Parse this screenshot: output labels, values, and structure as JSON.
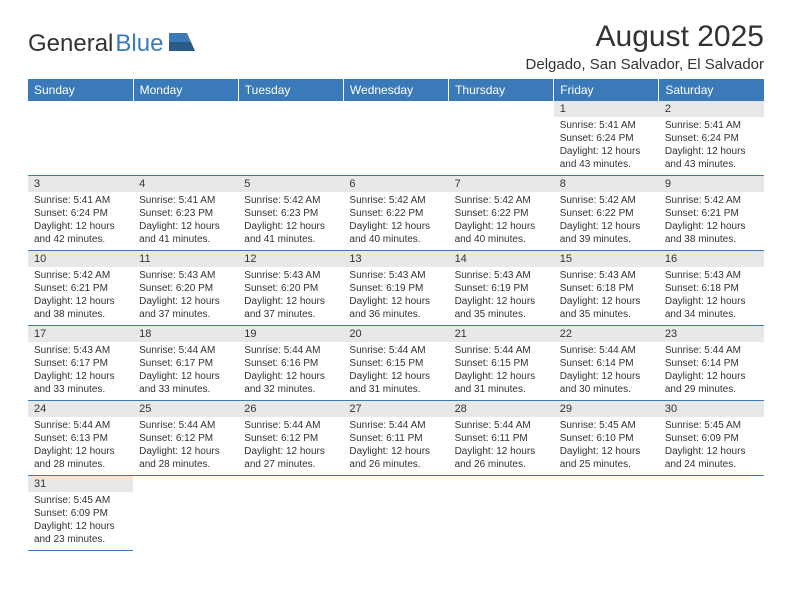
{
  "logo": {
    "general": "General",
    "blue": "Blue"
  },
  "title": "August 2025",
  "location": "Delgado, San Salvador, El Salvador",
  "colors": {
    "header_bg": "#3a7ab8",
    "header_text": "#ffffff",
    "daynum_bg": "#e8e8e8",
    "border": "#3a7ab8",
    "text": "#333333",
    "page_bg": "#ffffff"
  },
  "fonts": {
    "title_size_pt": 22,
    "location_size_pt": 11,
    "dow_size_pt": 9,
    "daynum_size_pt": 8,
    "body_size_pt": 7.5
  },
  "days_of_week": [
    "Sunday",
    "Monday",
    "Tuesday",
    "Wednesday",
    "Thursday",
    "Friday",
    "Saturday"
  ],
  "weeks": [
    [
      {
        "n": "",
        "lines": []
      },
      {
        "n": "",
        "lines": []
      },
      {
        "n": "",
        "lines": []
      },
      {
        "n": "",
        "lines": []
      },
      {
        "n": "",
        "lines": []
      },
      {
        "n": "1",
        "lines": [
          "Sunrise: 5:41 AM",
          "Sunset: 6:24 PM",
          "Daylight: 12 hours",
          "and 43 minutes."
        ]
      },
      {
        "n": "2",
        "lines": [
          "Sunrise: 5:41 AM",
          "Sunset: 6:24 PM",
          "Daylight: 12 hours",
          "and 43 minutes."
        ]
      }
    ],
    [
      {
        "n": "3",
        "lines": [
          "Sunrise: 5:41 AM",
          "Sunset: 6:24 PM",
          "Daylight: 12 hours",
          "and 42 minutes."
        ]
      },
      {
        "n": "4",
        "lines": [
          "Sunrise: 5:41 AM",
          "Sunset: 6:23 PM",
          "Daylight: 12 hours",
          "and 41 minutes."
        ]
      },
      {
        "n": "5",
        "lines": [
          "Sunrise: 5:42 AM",
          "Sunset: 6:23 PM",
          "Daylight: 12 hours",
          "and 41 minutes."
        ]
      },
      {
        "n": "6",
        "lines": [
          "Sunrise: 5:42 AM",
          "Sunset: 6:22 PM",
          "Daylight: 12 hours",
          "and 40 minutes."
        ]
      },
      {
        "n": "7",
        "lines": [
          "Sunrise: 5:42 AM",
          "Sunset: 6:22 PM",
          "Daylight: 12 hours",
          "and 40 minutes."
        ]
      },
      {
        "n": "8",
        "lines": [
          "Sunrise: 5:42 AM",
          "Sunset: 6:22 PM",
          "Daylight: 12 hours",
          "and 39 minutes."
        ]
      },
      {
        "n": "9",
        "lines": [
          "Sunrise: 5:42 AM",
          "Sunset: 6:21 PM",
          "Daylight: 12 hours",
          "and 38 minutes."
        ]
      }
    ],
    [
      {
        "n": "10",
        "lines": [
          "Sunrise: 5:42 AM",
          "Sunset: 6:21 PM",
          "Daylight: 12 hours",
          "and 38 minutes."
        ]
      },
      {
        "n": "11",
        "lines": [
          "Sunrise: 5:43 AM",
          "Sunset: 6:20 PM",
          "Daylight: 12 hours",
          "and 37 minutes."
        ]
      },
      {
        "n": "12",
        "lines": [
          "Sunrise: 5:43 AM",
          "Sunset: 6:20 PM",
          "Daylight: 12 hours",
          "and 37 minutes."
        ]
      },
      {
        "n": "13",
        "lines": [
          "Sunrise: 5:43 AM",
          "Sunset: 6:19 PM",
          "Daylight: 12 hours",
          "and 36 minutes."
        ]
      },
      {
        "n": "14",
        "lines": [
          "Sunrise: 5:43 AM",
          "Sunset: 6:19 PM",
          "Daylight: 12 hours",
          "and 35 minutes."
        ]
      },
      {
        "n": "15",
        "lines": [
          "Sunrise: 5:43 AM",
          "Sunset: 6:18 PM",
          "Daylight: 12 hours",
          "and 35 minutes."
        ]
      },
      {
        "n": "16",
        "lines": [
          "Sunrise: 5:43 AM",
          "Sunset: 6:18 PM",
          "Daylight: 12 hours",
          "and 34 minutes."
        ]
      }
    ],
    [
      {
        "n": "17",
        "lines": [
          "Sunrise: 5:43 AM",
          "Sunset: 6:17 PM",
          "Daylight: 12 hours",
          "and 33 minutes."
        ]
      },
      {
        "n": "18",
        "lines": [
          "Sunrise: 5:44 AM",
          "Sunset: 6:17 PM",
          "Daylight: 12 hours",
          "and 33 minutes."
        ]
      },
      {
        "n": "19",
        "lines": [
          "Sunrise: 5:44 AM",
          "Sunset: 6:16 PM",
          "Daylight: 12 hours",
          "and 32 minutes."
        ]
      },
      {
        "n": "20",
        "lines": [
          "Sunrise: 5:44 AM",
          "Sunset: 6:15 PM",
          "Daylight: 12 hours",
          "and 31 minutes."
        ]
      },
      {
        "n": "21",
        "lines": [
          "Sunrise: 5:44 AM",
          "Sunset: 6:15 PM",
          "Daylight: 12 hours",
          "and 31 minutes."
        ]
      },
      {
        "n": "22",
        "lines": [
          "Sunrise: 5:44 AM",
          "Sunset: 6:14 PM",
          "Daylight: 12 hours",
          "and 30 minutes."
        ]
      },
      {
        "n": "23",
        "lines": [
          "Sunrise: 5:44 AM",
          "Sunset: 6:14 PM",
          "Daylight: 12 hours",
          "and 29 minutes."
        ]
      }
    ],
    [
      {
        "n": "24",
        "lines": [
          "Sunrise: 5:44 AM",
          "Sunset: 6:13 PM",
          "Daylight: 12 hours",
          "and 28 minutes."
        ]
      },
      {
        "n": "25",
        "lines": [
          "Sunrise: 5:44 AM",
          "Sunset: 6:12 PM",
          "Daylight: 12 hours",
          "and 28 minutes."
        ]
      },
      {
        "n": "26",
        "lines": [
          "Sunrise: 5:44 AM",
          "Sunset: 6:12 PM",
          "Daylight: 12 hours",
          "and 27 minutes."
        ]
      },
      {
        "n": "27",
        "lines": [
          "Sunrise: 5:44 AM",
          "Sunset: 6:11 PM",
          "Daylight: 12 hours",
          "and 26 minutes."
        ]
      },
      {
        "n": "28",
        "lines": [
          "Sunrise: 5:44 AM",
          "Sunset: 6:11 PM",
          "Daylight: 12 hours",
          "and 26 minutes."
        ]
      },
      {
        "n": "29",
        "lines": [
          "Sunrise: 5:45 AM",
          "Sunset: 6:10 PM",
          "Daylight: 12 hours",
          "and 25 minutes."
        ]
      },
      {
        "n": "30",
        "lines": [
          "Sunrise: 5:45 AM",
          "Sunset: 6:09 PM",
          "Daylight: 12 hours",
          "and 24 minutes."
        ]
      }
    ],
    [
      {
        "n": "31",
        "lines": [
          "Sunrise: 5:45 AM",
          "Sunset: 6:09 PM",
          "Daylight: 12 hours",
          "and 23 minutes."
        ]
      },
      {
        "n": "",
        "lines": []
      },
      {
        "n": "",
        "lines": []
      },
      {
        "n": "",
        "lines": []
      },
      {
        "n": "",
        "lines": []
      },
      {
        "n": "",
        "lines": []
      },
      {
        "n": "",
        "lines": []
      }
    ]
  ]
}
